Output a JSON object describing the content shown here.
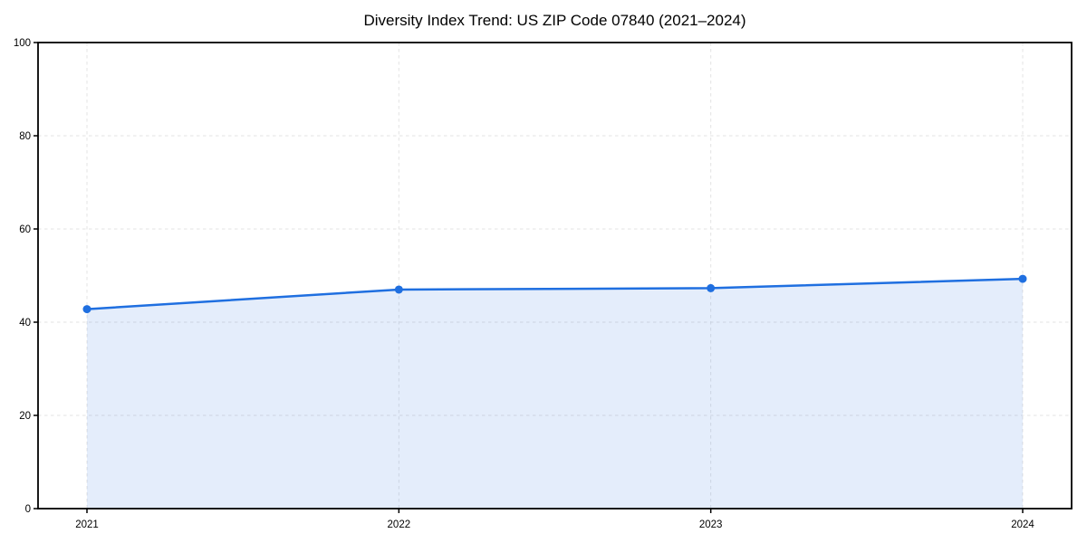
{
  "title": "Diversity Index Trend: US ZIP Code 07840 (2021–2024)",
  "chart_data": {
    "type": "area",
    "title": "Diversity Index Trend: US ZIP Code 07840 (2021–2024)",
    "categories": [
      "2021",
      "2022",
      "2023",
      "2024"
    ],
    "values": [
      42.8,
      47.0,
      47.3,
      49.3
    ],
    "series_name": "Diversity Index",
    "xlabel": "",
    "ylabel": "",
    "ylim": [
      0,
      100
    ],
    "yticks": [
      0,
      20,
      40,
      60,
      80,
      100
    ],
    "grid": true,
    "grid_style": "dashed",
    "legend": "none",
    "line_color": "#1f6fe0",
    "marker_color": "#1f6fe0",
    "fill_color": "#1f6fe0",
    "fill_opacity": 0.12,
    "grid_color": "#e3e3e3",
    "spine_color": "#000000"
  }
}
